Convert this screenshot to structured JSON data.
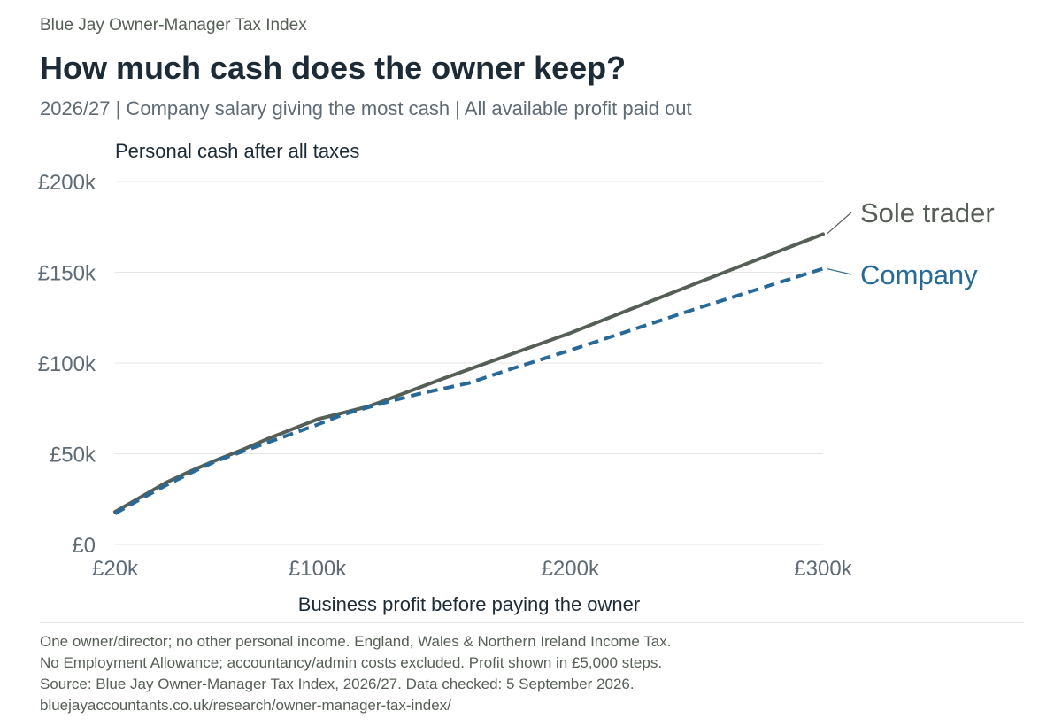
{
  "header": {
    "kicker": "Blue Jay Owner-Manager Tax Index",
    "title": "How much cash does the owner keep?",
    "subtitle": "2026/27 | Company salary giving the most cash | All available profit paid out"
  },
  "colors": {
    "sole_trader": "#555f55",
    "company": "#276a9a",
    "grid": "#e6e6e6"
  },
  "chart_data": {
    "type": "line",
    "title": "",
    "ylabel": "Personal cash after all taxes",
    "xlabel": "Business profit before paying the owner",
    "xlim": [
      20000,
      300000
    ],
    "ylim": [
      0,
      200000
    ],
    "x_ticks": [
      {
        "value": 20000,
        "label": "£20k"
      },
      {
        "value": 100000,
        "label": "£100k"
      },
      {
        "value": 200000,
        "label": "£200k"
      },
      {
        "value": 300000,
        "label": "£300k"
      }
    ],
    "y_ticks": [
      {
        "value": 0,
        "label": "£0"
      },
      {
        "value": 50000,
        "label": "£50k"
      },
      {
        "value": 100000,
        "label": "£100k"
      },
      {
        "value": 150000,
        "label": "£150k"
      },
      {
        "value": 200000,
        "label": "£200k"
      }
    ],
    "grid": true,
    "legend": "direct labels at right end of lines",
    "series": [
      {
        "name": "Sole trader",
        "style": "solid",
        "color": "#555f55",
        "points": [
          [
            20000,
            18000
          ],
          [
            30000,
            26000
          ],
          [
            40000,
            34000
          ],
          [
            50000,
            40500
          ],
          [
            60000,
            46500
          ],
          [
            70000,
            52000
          ],
          [
            80000,
            58000
          ],
          [
            90000,
            63500
          ],
          [
            100000,
            69000
          ],
          [
            110000,
            72500
          ],
          [
            120000,
            76000
          ],
          [
            125000,
            78500
          ],
          [
            150000,
            91500
          ],
          [
            175000,
            104000
          ],
          [
            200000,
            116500
          ],
          [
            250000,
            144000
          ],
          [
            300000,
            171000
          ]
        ]
      },
      {
        "name": "Company",
        "style": "dashed",
        "color": "#276a9a",
        "points": [
          [
            20000,
            17000
          ],
          [
            30000,
            25000
          ],
          [
            40000,
            32500
          ],
          [
            50000,
            39500
          ],
          [
            60000,
            46000
          ],
          [
            70000,
            51000
          ],
          [
            80000,
            56000
          ],
          [
            90000,
            61000
          ],
          [
            100000,
            66000
          ],
          [
            110000,
            71500
          ],
          [
            125000,
            77500
          ],
          [
            140000,
            83000
          ],
          [
            160000,
            89000
          ],
          [
            175000,
            96000
          ],
          [
            200000,
            107000
          ],
          [
            250000,
            130000
          ],
          [
            300000,
            152000
          ]
        ]
      }
    ]
  },
  "footnotes": {
    "line1": "One owner/director; no other personal income. England, Wales & Northern Ireland Income Tax.",
    "line2": "No Employment Allowance; accountancy/admin costs excluded. Profit shown in £5,000 steps.",
    "line3": "Source: Blue Jay Owner-Manager Tax Index, 2026/27. Data checked: 5 September 2026.",
    "line4": "bluejayaccountants.co.uk/research/owner-manager-tax-index/"
  }
}
